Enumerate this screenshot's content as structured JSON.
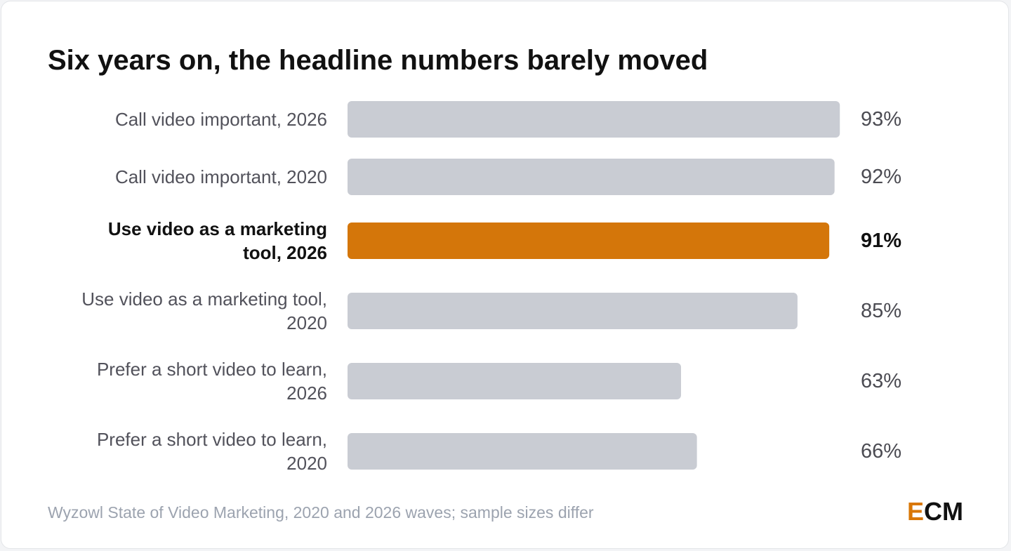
{
  "title": "Six years on, the headline numbers barely moved",
  "source": "Wyzowl State of Video Marketing, 2020 and 2026 waves; sample sizes differ",
  "logo": {
    "e": "E",
    "cm": "CM"
  },
  "colors": {
    "bar": "#c9ccd3",
    "highlight": "#d4760a",
    "logo_accent": "#d97706"
  },
  "chart_data": {
    "type": "bar",
    "orientation": "horizontal",
    "value_suffix": "%",
    "xlim": [
      0,
      100
    ],
    "grid": false,
    "categories": [
      [
        "Call video important, 2026"
      ],
      [
        "Call video important, 2020"
      ],
      [
        "Use video as a marketing",
        "tool, 2026"
      ],
      [
        "Use video as a marketing tool,",
        "2020"
      ],
      [
        "Prefer a short video to learn,",
        "2026"
      ],
      [
        "Prefer a short video to learn,",
        "2020"
      ]
    ],
    "values": [
      93,
      92,
      91,
      85,
      63,
      66
    ],
    "value_labels": [
      "93%",
      "92%",
      "91%",
      "85%",
      "63%",
      "66%"
    ],
    "highlight_index": 2
  }
}
